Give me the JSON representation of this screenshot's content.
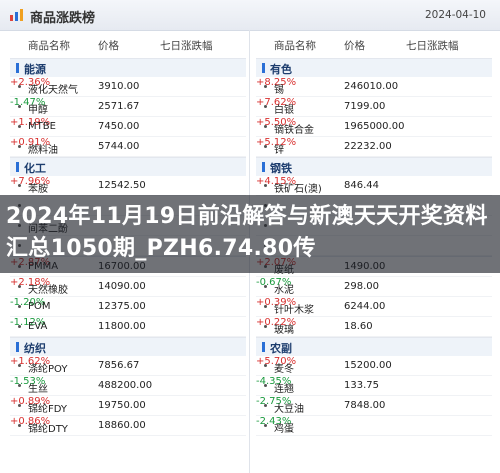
{
  "header": {
    "title": "商品涨跌榜",
    "date": "2024-04-10"
  },
  "columns": {
    "name": "商品名称",
    "price": "价格",
    "change": "七日涨跌幅"
  },
  "left": [
    {
      "label": "能源",
      "items": [
        {
          "name": "液化天然气",
          "price": "3910.00",
          "change": "+2.36%",
          "dir": "up"
        },
        {
          "name": "甲醇",
          "price": "2571.67",
          "change": "-1.47%",
          "dir": "down"
        },
        {
          "name": "MTBE",
          "price": "7450.00",
          "change": "+1.19%",
          "dir": "up"
        },
        {
          "name": "燃料油",
          "price": "5744.00",
          "change": "+0.91%",
          "dir": "up"
        }
      ]
    },
    {
      "label": "化工",
      "items": [
        {
          "name": "苯胺",
          "price": "12542.50",
          "change": "+7.96%",
          "dir": "up"
        },
        {
          "name": "",
          "price": "",
          "change": "",
          "dir": "up"
        },
        {
          "name": "间苯二酚",
          "price": "",
          "change": "",
          "dir": "up"
        },
        {
          "name": "",
          "price": "",
          "change": "",
          "dir": "up"
        }
      ]
    },
    {
      "label": "",
      "items": [
        {
          "name": "PMMA",
          "price": "16700.00",
          "change": "+2.87%",
          "dir": "up"
        },
        {
          "name": "天然橡胶",
          "price": "14090.00",
          "change": "+2.18%",
          "dir": "up"
        },
        {
          "name": "POM",
          "price": "12375.00",
          "change": "-1.20%",
          "dir": "down"
        },
        {
          "name": "EVA",
          "price": "11800.00",
          "change": "-1.12%",
          "dir": "down"
        }
      ]
    },
    {
      "label": "纺织",
      "items": [
        {
          "name": "涤纶POY",
          "price": "7856.67",
          "change": "+1.62%",
          "dir": "up"
        },
        {
          "name": "生丝",
          "price": "488200.00",
          "change": "-1.53%",
          "dir": "down"
        },
        {
          "name": "锦纶FDY",
          "price": "19750.00",
          "change": "+0.89%",
          "dir": "up"
        },
        {
          "name": "锦纶DTY",
          "price": "18860.00",
          "change": "+0.86%",
          "dir": "up"
        }
      ]
    }
  ],
  "right": [
    {
      "label": "有色",
      "items": [
        {
          "name": "锡",
          "price": "246010.00",
          "change": "+8.25%",
          "dir": "up"
        },
        {
          "name": "白银",
          "price": "7199.00",
          "change": "+7.62%",
          "dir": "up"
        },
        {
          "name": "镝铁合金",
          "price": "1965000.00",
          "change": "+5.50%",
          "dir": "up"
        },
        {
          "name": "锌",
          "price": "22232.00",
          "change": "+5.12%",
          "dir": "up"
        }
      ]
    },
    {
      "label": "钢铁",
      "items": [
        {
          "name": "铁矿石(澳)",
          "price": "846.44",
          "change": "+4.15%",
          "dir": "up"
        },
        {
          "name": "",
          "price": "",
          "change": "",
          "dir": "up"
        },
        {
          "name": "",
          "price": "",
          "change": "",
          "dir": "up"
        },
        {
          "name": "",
          "price": "",
          "change": "",
          "dir": "up"
        }
      ]
    },
    {
      "label": "",
      "items": [
        {
          "name": "废纸",
          "price": "1490.00",
          "change": "+2.07%",
          "dir": "up"
        },
        {
          "name": "水泥",
          "price": "298.00",
          "change": "-0.67%",
          "dir": "down"
        },
        {
          "name": "针叶木浆",
          "price": "6244.00",
          "change": "+0.39%",
          "dir": "up"
        },
        {
          "name": "玻璃",
          "price": "18.60",
          "change": "+0.22%",
          "dir": "up"
        }
      ]
    },
    {
      "label": "农副",
      "items": [
        {
          "name": "麦冬",
          "price": "15200.00",
          "change": "+5.70%",
          "dir": "up"
        },
        {
          "name": "连翘",
          "price": "133.75",
          "change": "-4.35%",
          "dir": "down"
        },
        {
          "name": "大豆油",
          "price": "7848.00",
          "change": "-2.75%",
          "dir": "down"
        },
        {
          "name": "鸡蛋",
          "price": "",
          "change": "-2.43%",
          "dir": "down"
        }
      ]
    }
  ],
  "overlay": {
    "text": "2024年11月19日前沿解答与新澳天天开奖资料汇总1050期_PZH6.74.80传"
  },
  "colors": {
    "up": "#d8302f",
    "down": "#1b9a3e",
    "accent": "#2a6fd6"
  }
}
